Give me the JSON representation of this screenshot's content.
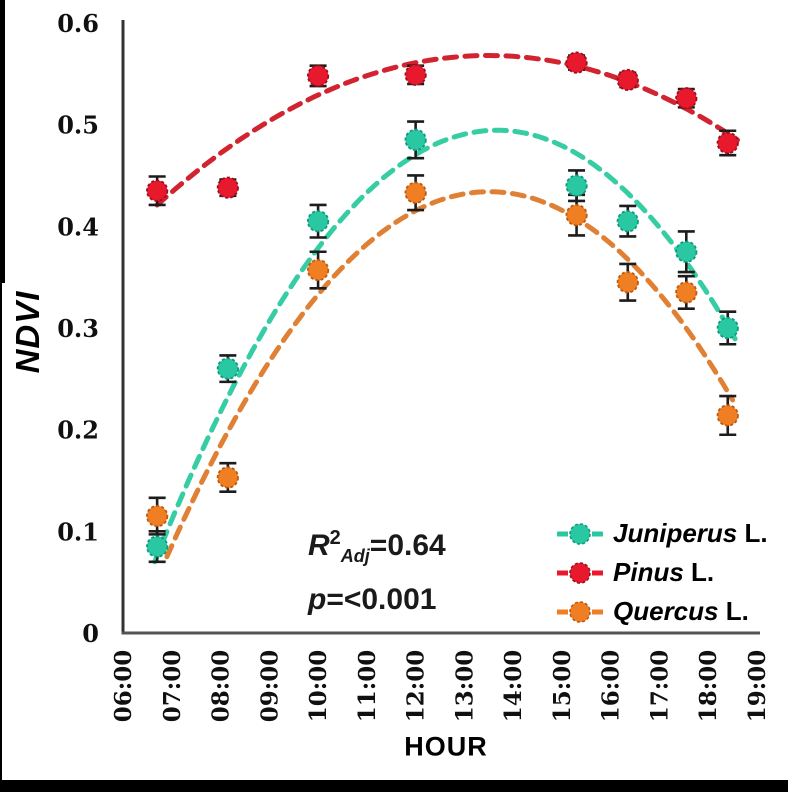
{
  "figure": {
    "background": "#ffffff",
    "border_color": "#000000",
    "axis_color": "#3d3d3d"
  },
  "annotation": {
    "r2_base": "R",
    "r2_sup": "2",
    "r2_sub": "Adj",
    "r2_value": "=0.64",
    "p_text": "p=<0.001"
  },
  "chart_data": {
    "type": "scatter",
    "title": "",
    "xlabel": "HOUR",
    "ylabel": "NDVI",
    "grid": false,
    "legend_position": "lower right",
    "xlim_hours": [
      6,
      19
    ],
    "ylim": [
      0,
      0.6
    ],
    "x_ticks": [
      "06:00",
      "07:00",
      "08:00",
      "09:00",
      "10:00",
      "11:00",
      "12:00",
      "13:00",
      "14:00",
      "15:00",
      "16:00",
      "17:00",
      "18:00",
      "19:00"
    ],
    "y_ticks": [
      {
        "label": "0.6",
        "value": 0.6
      },
      {
        "label": "0.5",
        "value": 0.5
      },
      {
        "label": "0.4",
        "value": 0.4
      },
      {
        "label": "0.3",
        "value": 0.3
      },
      {
        "label": "0.2",
        "value": 0.2
      },
      {
        "label": "0.1",
        "value": 0.1
      },
      {
        "label": "0",
        "value": 0
      }
    ],
    "x_hours": [
      6.7,
      8.15,
      10.0,
      12.0,
      15.3,
      16.35,
      17.55,
      18.4
    ],
    "series": [
      {
        "name": "Juniperus L.",
        "label_genus": "Juniperus",
        "label_suffix": " L.",
        "color": "#29C8A2",
        "edge_color": "#0E9B7D",
        "curve_color": "#36CDA4",
        "values": [
          0.085,
          0.26,
          0.405,
          0.485,
          0.44,
          0.405,
          0.375,
          0.3
        ],
        "errors": [
          0.015,
          0.013,
          0.016,
          0.018,
          0.015,
          0.015,
          0.02,
          0.016
        ],
        "fit_curve_points": [
          [
            6.65,
            0.07
          ],
          [
            13.25,
            0.493
          ],
          [
            18.6,
            0.285
          ]
        ]
      },
      {
        "name": "Pinus L.",
        "label_genus": "Pinus",
        "label_suffix": " L.",
        "color": "#E8182D",
        "edge_color": "#9E0F1E",
        "curve_color": "#D22430",
        "values": [
          0.435,
          0.438,
          0.548,
          0.549,
          0.561,
          0.544,
          0.526,
          0.482
        ],
        "errors": [
          0.014,
          0.008,
          0.01,
          0.009,
          0.007,
          0.007,
          0.009,
          0.012
        ],
        "fit_curve_points": [
          [
            6.7,
            0.421
          ],
          [
            13.5,
            0.568
          ],
          [
            18.6,
            0.485
          ]
        ]
      },
      {
        "name": "Quercus L.",
        "label_genus": "Quercus",
        "label_suffix": " L.",
        "color": "#F07E22",
        "edge_color": "#BC5A10",
        "curve_color": "#E08034",
        "values": [
          0.115,
          0.153,
          0.357,
          0.433,
          0.411,
          0.345,
          0.335,
          0.214
        ],
        "errors": [
          0.018,
          0.014,
          0.018,
          0.017,
          0.02,
          0.018,
          0.016,
          0.019
        ],
        "fit_curve_points": [
          [
            6.9,
            0.075
          ],
          [
            13.6,
            0.434
          ],
          [
            18.55,
            0.225
          ]
        ]
      }
    ],
    "fit_annotation": {
      "r2_adj": 0.64,
      "p": "<0.001"
    }
  }
}
